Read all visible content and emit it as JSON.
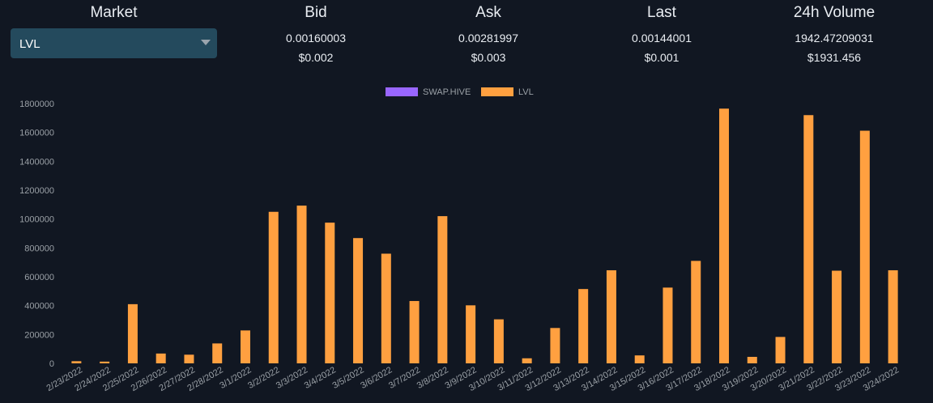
{
  "market": {
    "title": "Market",
    "selected": "LVL",
    "caret_icon": "chevron-down-icon"
  },
  "stats": [
    {
      "title": "Bid",
      "value": "0.00160003",
      "usd": "$0.002"
    },
    {
      "title": "Ask",
      "value": "0.00281997",
      "usd": "$0.003"
    },
    {
      "title": "Last",
      "value": "0.00144001",
      "usd": "$0.001"
    },
    {
      "title": "24h Volume",
      "value": "1942.47209031",
      "usd": "$1931.456"
    }
  ],
  "chart_data": {
    "type": "bar",
    "categories": [
      "2/23/2022",
      "2/24/2022",
      "2/25/2022",
      "2/26/2022",
      "2/27/2022",
      "2/28/2022",
      "3/1/2022",
      "3/2/2022",
      "3/3/2022",
      "3/4/2022",
      "3/5/2022",
      "3/6/2022",
      "3/7/2022",
      "3/8/2022",
      "3/9/2022",
      "3/10/2022",
      "3/11/2022",
      "3/12/2022",
      "3/13/2022",
      "3/14/2022",
      "3/15/2022",
      "3/16/2022",
      "3/17/2022",
      "3/18/2022",
      "3/19/2022",
      "3/20/2022",
      "3/21/2022",
      "3/22/2022",
      "3/23/2022",
      "3/24/2022"
    ],
    "series": [
      {
        "name": "SWAP.HIVE",
        "color": "#9966ff",
        "values": [
          0,
          0,
          0,
          0,
          0,
          0,
          0,
          0,
          0,
          0,
          0,
          0,
          0,
          0,
          0,
          0,
          0,
          0,
          0,
          0,
          0,
          0,
          0,
          0,
          0,
          0,
          0,
          0,
          0,
          0
        ]
      },
      {
        "name": "LVL",
        "color": "#ffa040",
        "values": [
          15000,
          12000,
          410000,
          68000,
          60000,
          138000,
          228000,
          1050000,
          1093000,
          975000,
          868000,
          760000,
          432000,
          1020000,
          402000,
          305000,
          35000,
          245000,
          515000,
          645000,
          55000,
          525000,
          710000,
          1765000,
          45000,
          183000,
          1720000,
          642000,
          1612000,
          645000
        ]
      }
    ],
    "ylim": [
      0,
      1800000
    ],
    "yticks": [
      0,
      200000,
      400000,
      600000,
      800000,
      1000000,
      1200000,
      1400000,
      1600000,
      1800000
    ],
    "legend_position": "top-center",
    "grid": false
  }
}
